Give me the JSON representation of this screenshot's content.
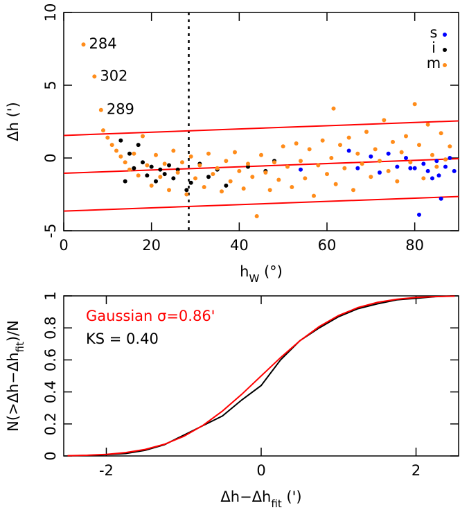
{
  "chart_data": [
    {
      "type": "scatter",
      "xlabel": [
        "h",
        "W",
        " (°)"
      ],
      "ylabel": [
        "Δh (')"
      ],
      "xlim": [
        0,
        90
      ],
      "ylim": [
        -5,
        10
      ],
      "xticks": [
        0,
        20,
        40,
        60,
        80
      ],
      "yticks": [
        -5,
        0,
        5,
        10
      ],
      "legend": "upper right",
      "series": [
        {
          "name": "s",
          "color": "#0000ff",
          "x": [
            54,
            65,
            67,
            70,
            72,
            74,
            76,
            78,
            79,
            80,
            81,
            82,
            83,
            84,
            85,
            85.5,
            86,
            87,
            88,
            89
          ],
          "values": [
            -0.8,
            0.5,
            -0.7,
            0.1,
            -1.0,
            0.3,
            -0.6,
            0.0,
            -0.7,
            -0.7,
            -3.9,
            -0.4,
            -0.9,
            -1.4,
            -0.2,
            -1.2,
            -2.8,
            -0.6,
            0.0,
            -0.9
          ]
        },
        {
          "name": "i",
          "color": "#000000",
          "x": [
            13,
            14,
            15,
            16,
            17,
            18,
            19,
            20,
            21,
            22,
            23,
            24,
            25,
            26,
            28,
            29,
            31,
            33,
            35,
            37,
            42,
            46,
            48
          ],
          "values": [
            1.2,
            -1.6,
            0.3,
            -0.7,
            0.9,
            -0.3,
            -1.2,
            -0.6,
            -1.6,
            -0.8,
            -1.1,
            -0.5,
            -1.4,
            -0.8,
            -2.2,
            -1.7,
            -0.4,
            -1.3,
            -0.8,
            -1.9,
            -0.6,
            -0.9,
            -0.2
          ]
        },
        {
          "name": "m",
          "color": "#ff8c1a",
          "x": [
            4.5,
            7,
            8.5,
            9,
            10,
            11,
            12,
            13,
            14,
            15,
            16,
            17,
            18,
            19,
            20,
            21,
            22,
            23,
            24,
            25,
            26,
            27,
            28,
            29,
            30,
            31,
            32,
            33,
            34,
            35,
            36,
            37,
            38,
            39,
            40,
            41,
            42,
            43,
            44,
            45,
            46,
            47,
            48,
            49,
            50,
            51,
            52,
            53,
            54,
            55,
            56,
            57,
            58,
            59,
            60,
            61,
            61.5,
            62,
            63,
            64,
            65,
            66,
            67,
            68,
            69,
            70,
            71,
            72,
            73,
            74,
            75,
            76,
            77,
            78,
            79,
            80,
            81,
            82,
            83,
            84,
            85,
            86,
            87,
            88
          ],
          "values": [
            7.8,
            5.6,
            3.3,
            1.9,
            1.4,
            0.9,
            0.5,
            0.1,
            -0.3,
            -0.8,
            0.3,
            -1.2,
            1.5,
            -0.5,
            -1.9,
            0.2,
            -1.3,
            -0.4,
            -2.2,
            0.5,
            -1.0,
            -0.3,
            -2.5,
            0.1,
            -1.4,
            -0.5,
            -2.0,
            0.3,
            -1.1,
            -0.7,
            -2.3,
            -0.2,
            -1.6,
            0.4,
            -0.9,
            -2.1,
            -0.4,
            -1.3,
            -4.0,
            0.2,
            -1.0,
            -2.2,
            -0.3,
            -1.5,
            0.8,
            -0.6,
            -2.0,
            1.0,
            -0.2,
            -1.4,
            0.6,
            -2.6,
            -0.5,
            1.2,
            -1.1,
            0.0,
            3.4,
            -1.8,
            0.9,
            -0.7,
            1.4,
            -2.2,
            0.3,
            -0.4,
            1.8,
            -1.3,
            0.6,
            -0.2,
            2.6,
            -0.9,
            1.1,
            -1.6,
            0.4,
            1.5,
            -0.3,
            3.7,
            0.9,
            -1.4,
            2.3,
            0.2,
            -0.6,
            1.7,
            -0.1,
            0.8
          ]
        }
      ],
      "lines": [
        {
          "color": "#ff0000",
          "x": [
            0,
            90
          ],
          "values": [
            1.55,
            2.55
          ]
        },
        {
          "color": "#ff0000",
          "x": [
            0,
            90
          ],
          "values": [
            -1.05,
            -0.05
          ]
        },
        {
          "color": "#ff0000",
          "x": [
            0,
            90
          ],
          "values": [
            -3.65,
            -2.65
          ]
        }
      ],
      "vline": 28.5,
      "annotations": [
        {
          "text": "284",
          "x": 4.5,
          "y": 7.8
        },
        {
          "text": "302",
          "x": 7,
          "y": 5.6
        },
        {
          "text": "289",
          "x": 8.5,
          "y": 3.3
        }
      ]
    },
    {
      "type": "line",
      "xlabel": [
        "Δh−Δh",
        "fit",
        " (')"
      ],
      "ylabel": [
        "N(>Δh−Δh",
        "fit",
        ")/N"
      ],
      "xlim": [
        -2.55,
        2.55
      ],
      "ylim": [
        0,
        1
      ],
      "xticks": [
        -2,
        0,
        2
      ],
      "yticks": [
        0,
        0.2,
        0.4,
        0.6,
        0.8,
        1
      ],
      "series": [
        {
          "color": "#000000",
          "x": [
            -2.5,
            -2.25,
            -2,
            -1.75,
            -1.5,
            -1.25,
            -1,
            -0.75,
            -0.5,
            -0.25,
            0,
            0.25,
            0.5,
            0.75,
            1,
            1.25,
            1.5,
            1.75,
            2,
            2.25,
            2.5
          ],
          "values": [
            0.001,
            0.003,
            0.008,
            0.015,
            0.035,
            0.07,
            0.13,
            0.19,
            0.25,
            0.35,
            0.44,
            0.6,
            0.72,
            0.8,
            0.87,
            0.92,
            0.95,
            0.975,
            0.985,
            0.995,
            1.0
          ]
        },
        {
          "color": "#ff0000",
          "x": [
            -2.5,
            -2.25,
            -2,
            -1.75,
            -1.5,
            -1.25,
            -1,
            -0.75,
            -0.5,
            -0.25,
            0,
            0.25,
            0.5,
            0.75,
            1,
            1.25,
            1.5,
            1.75,
            2,
            2.25,
            2.5
          ],
          "values": [
            0.0018,
            0.0044,
            0.01,
            0.0209,
            0.0406,
            0.0731,
            0.1224,
            0.1916,
            0.2806,
            0.3856,
            0.5,
            0.6144,
            0.7194,
            0.8084,
            0.8776,
            0.9269,
            0.9594,
            0.9791,
            0.99,
            0.9956,
            0.9982
          ]
        }
      ],
      "annotations": [
        {
          "text": "Gaussian σ=0.86'",
          "color": "#ff0000"
        },
        {
          "text": "KS = 0.40",
          "color": "#000000"
        }
      ]
    }
  ]
}
